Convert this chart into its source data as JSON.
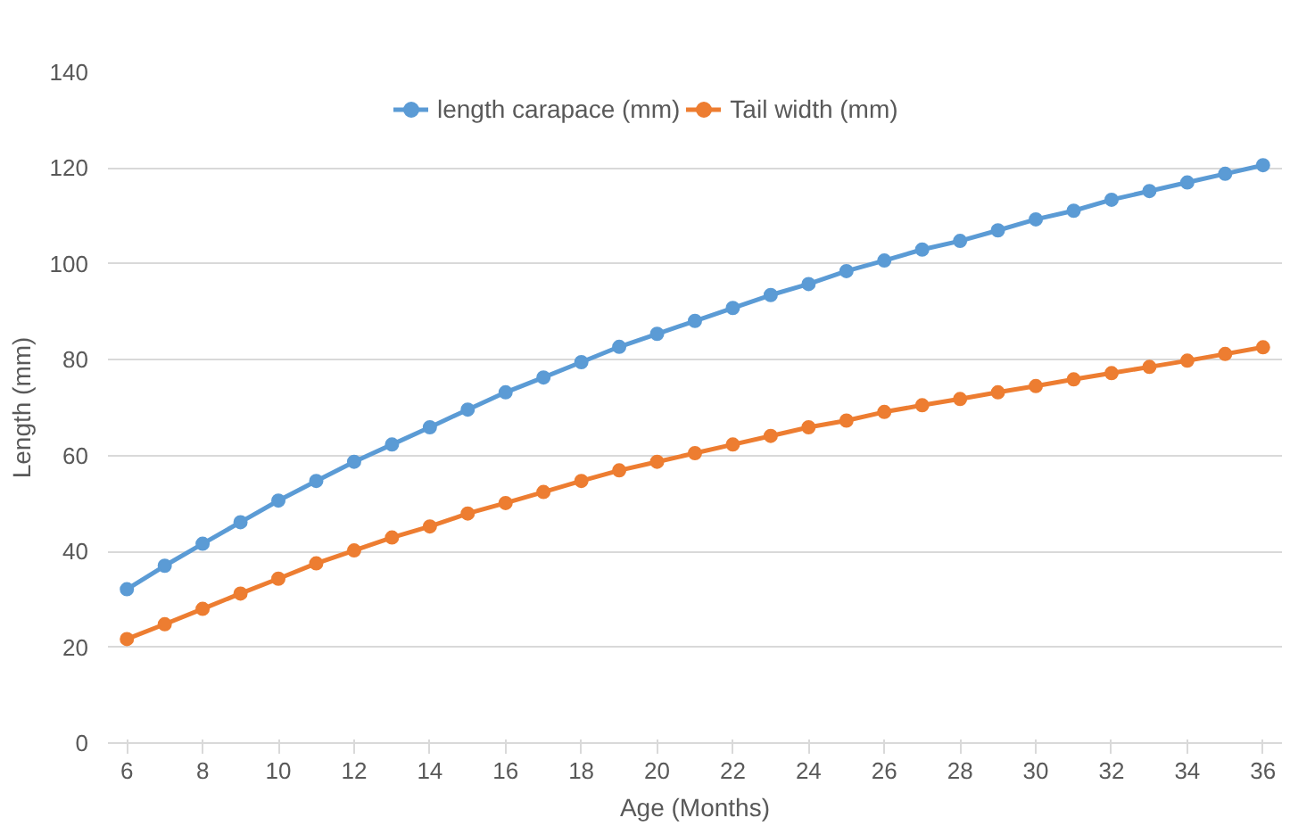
{
  "chart_data": {
    "type": "line",
    "xlabel": "Age (Months)",
    "ylabel": "Length (mm)",
    "x": [
      6,
      7,
      8,
      9,
      10,
      11,
      12,
      13,
      14,
      15,
      16,
      17,
      18,
      19,
      20,
      21,
      22,
      23,
      24,
      25,
      26,
      27,
      28,
      29,
      30,
      31,
      32,
      33,
      34,
      35,
      36
    ],
    "series": [
      {
        "name": "length carapace (mm)",
        "color": "#5b9bd5",
        "values": [
          32.1,
          37.0,
          41.6,
          46.1,
          50.6,
          54.7,
          58.7,
          62.3,
          65.9,
          69.6,
          73.2,
          76.3,
          79.5,
          82.7,
          85.4,
          88.1,
          90.8,
          93.5,
          95.8,
          98.5,
          100.7,
          103.0,
          104.8,
          107.0,
          109.3,
          111.1,
          113.4,
          115.2,
          117.0,
          118.8,
          120.6
        ]
      },
      {
        "name": "Tail width (mm)",
        "color": "#ed7d31",
        "values": [
          21.7,
          24.8,
          28.0,
          31.2,
          34.3,
          37.5,
          40.2,
          42.9,
          45.2,
          47.9,
          50.1,
          52.4,
          54.7,
          56.9,
          58.7,
          60.5,
          62.3,
          64.1,
          65.9,
          67.3,
          69.1,
          70.5,
          71.8,
          73.2,
          74.5,
          75.9,
          77.2,
          78.5,
          79.8,
          81.2,
          82.6
        ]
      }
    ],
    "xlim": [
      5.5,
      36.5
    ],
    "xticks": [
      6,
      8,
      10,
      12,
      14,
      16,
      18,
      20,
      22,
      24,
      26,
      28,
      30,
      32,
      34,
      36
    ],
    "ylim": [
      0,
      140
    ],
    "yticks": [
      0,
      20,
      40,
      60,
      80,
      100,
      120,
      140
    ],
    "grid": "y",
    "legend": "top",
    "marker": "circle",
    "line_style": "solid"
  }
}
